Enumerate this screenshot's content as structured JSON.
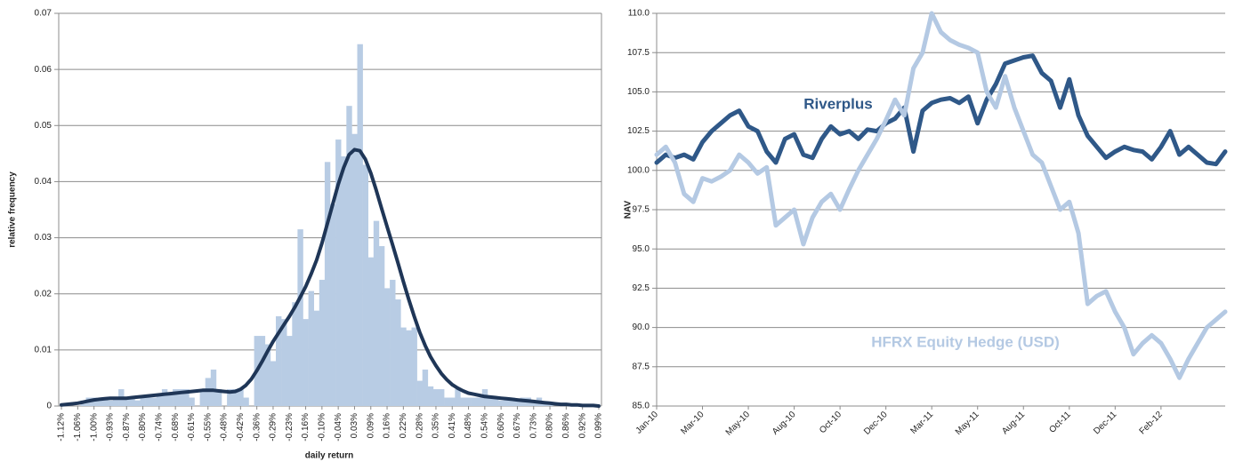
{
  "chart_data": [
    {
      "type": "bar",
      "x_label": "daily return",
      "y_label": "relative frequency",
      "categories": [
        "-1.12%",
        null,
        null,
        "-1.06%",
        null,
        null,
        "-1.00%",
        null,
        null,
        "-0.93%",
        null,
        null,
        "-0.87%",
        null,
        null,
        "-0.80%",
        null,
        null,
        "-0.74%",
        null,
        null,
        "-0.68%",
        null,
        null,
        "-0.61%",
        null,
        null,
        "-0.55%",
        null,
        null,
        "-0.48%",
        null,
        null,
        "-0.42%",
        null,
        null,
        "-0.36%",
        null,
        null,
        "-0.29%",
        null,
        null,
        "-0.23%",
        null,
        null,
        "-0.16%",
        null,
        null,
        "-0.10%",
        null,
        null,
        "-0.04%",
        null,
        null,
        "0.03%",
        null,
        null,
        "0.09%",
        null,
        null,
        "0.16%",
        null,
        null,
        "0.22%",
        null,
        null,
        "0.28%",
        null,
        null,
        "0.35%",
        null,
        null,
        "0.41%",
        null,
        null,
        "0.48%",
        null,
        null,
        "0.54%",
        null,
        null,
        "0.60%",
        null,
        null,
        "0.67%",
        null,
        null,
        "0.73%",
        null,
        null,
        "0.80%",
        null,
        null,
        "0.86%",
        null,
        null,
        "0.92%",
        null,
        null,
        "0.99%"
      ],
      "series": [
        {
          "type": "bar",
          "color": "#b8cce4",
          "values": [
            0,
            0,
            0,
            0,
            0.001,
            0.0015,
            0.0015,
            0.001,
            0.0015,
            0.001,
            0.0015,
            0.003,
            0.0015,
            0.0015,
            0.001,
            0.0015,
            0.0015,
            0.0015,
            0.002,
            0.003,
            0.002,
            0.003,
            0.003,
            0.003,
            0.0015,
            0,
            0.003,
            0.005,
            0.0065,
            0.003,
            0,
            0.003,
            0.003,
            0.003,
            0.0015,
            0,
            0.0125,
            0.0125,
            0.011,
            0.008,
            0.016,
            0.0155,
            0.0125,
            0.0185,
            0.0315,
            0.0155,
            0.0205,
            0.017,
            0.0225,
            0.0435,
            0.036,
            0.0475,
            0.0445,
            0.0535,
            0.0485,
            0.0645,
            0.043,
            0.0265,
            0.033,
            0.0285,
            0.021,
            0.0225,
            0.019,
            0.014,
            0.0135,
            0.014,
            0.0045,
            0.0065,
            0.0035,
            0.003,
            0.003,
            0.0015,
            0.0015,
            0.003,
            0.0015,
            0.0015,
            0.0015,
            0.0015,
            0.003,
            0.0015,
            0.0015,
            0.001,
            0.0015,
            0.0015,
            0.001,
            0.0015,
            0.0015,
            0.001,
            0.0015,
            0.0005,
            0.0005,
            0,
            0,
            0,
            0,
            0,
            0,
            0,
            0,
            0
          ]
        },
        {
          "type": "line",
          "color": "#1f3657",
          "values": [
            0.0002,
            0.0003,
            0.0004,
            0.0005,
            0.0007,
            0.0009,
            0.0011,
            0.0012,
            0.0013,
            0.0014,
            0.0014,
            0.0014,
            0.0014,
            0.0015,
            0.0016,
            0.0017,
            0.0018,
            0.0019,
            0.002,
            0.0021,
            0.0022,
            0.0023,
            0.0024,
            0.0025,
            0.0026,
            0.0027,
            0.0028,
            0.0028,
            0.0028,
            0.0027,
            0.0026,
            0.0025,
            0.0026,
            0.003,
            0.0037,
            0.0048,
            0.0063,
            0.008,
            0.0098,
            0.0115,
            0.013,
            0.0145,
            0.016,
            0.0176,
            0.0194,
            0.0213,
            0.0235,
            0.026,
            0.029,
            0.0325,
            0.036,
            0.0395,
            0.0425,
            0.0448,
            0.0457,
            0.0455,
            0.044,
            0.0415,
            0.0385,
            0.0352,
            0.032,
            0.0288,
            0.0255,
            0.0222,
            0.019,
            0.016,
            0.0132,
            0.0108,
            0.0088,
            0.0072,
            0.0058,
            0.0047,
            0.0038,
            0.0032,
            0.0027,
            0.0023,
            0.0021,
            0.0019,
            0.0017,
            0.0016,
            0.0015,
            0.0014,
            0.0013,
            0.0012,
            0.0011,
            0.001,
            0.0009,
            0.0008,
            0.0007,
            0.0006,
            0.0005,
            0.0004,
            0.0003,
            0.0003,
            0.0002,
            0.0002,
            0.0001,
            0.0001,
            0.0001,
            0
          ]
        }
      ],
      "ylim": [
        0,
        0.07
      ],
      "yticks": [
        0,
        0.01,
        0.02,
        0.03,
        0.04,
        0.05,
        0.06,
        0.07
      ],
      "grid": true
    },
    {
      "type": "line",
      "y_label": "NAV",
      "categories": [
        "Jan-10",
        null,
        null,
        null,
        null,
        "Mar-10",
        null,
        null,
        null,
        null,
        "May-10",
        null,
        null,
        null,
        null,
        "Aug-10",
        null,
        null,
        null,
        null,
        "Oct-10",
        null,
        null,
        null,
        null,
        "Dec-10",
        null,
        null,
        null,
        null,
        "Mar-11",
        null,
        null,
        null,
        null,
        "May-11",
        null,
        null,
        null,
        null,
        "Aug-11",
        null,
        null,
        null,
        null,
        "Oct-11",
        null,
        null,
        null,
        null,
        "Dec-11",
        null,
        null,
        null,
        null,
        "Feb-12",
        null,
        null,
        null,
        null,
        null,
        null,
        null
      ],
      "series": [
        {
          "name": "Riverplus",
          "color": "#2f5888",
          "values": [
            100.5,
            101,
            100.8,
            101,
            100.7,
            101.8,
            102.5,
            103,
            103.5,
            103.8,
            102.8,
            102.5,
            101.2,
            100.5,
            102,
            102.3,
            101,
            100.8,
            102,
            102.8,
            102.3,
            102.5,
            102,
            102.6,
            102.5,
            103,
            103.3,
            104,
            101.2,
            103.8,
            104.3,
            104.5,
            104.6,
            104.3,
            104.7,
            103,
            104.5,
            105.5,
            106.8,
            107,
            107.2,
            107.3,
            106.2,
            105.7,
            104,
            105.8,
            103.5,
            102.2,
            101.5,
            100.8,
            101.2,
            101.5,
            101.3,
            101.2,
            100.7,
            101.5,
            102.5,
            101,
            101.5,
            101,
            100.5,
            100.4,
            101.2
          ]
        },
        {
          "name": "HFRX Equity Hedge (USD)",
          "color": "#b4c9e3",
          "values": [
            101,
            101.5,
            100.5,
            98.5,
            98,
            99.5,
            99.3,
            99.6,
            100,
            101,
            100.5,
            99.8,
            100.2,
            96.5,
            97,
            97.5,
            95.3,
            97,
            98,
            98.5,
            97.5,
            98.8,
            100,
            101,
            102,
            103.2,
            104.5,
            103.5,
            106.5,
            107.5,
            110,
            108.8,
            108.3,
            108,
            107.8,
            107.5,
            105,
            104,
            106,
            104,
            102.5,
            101,
            100.5,
            99,
            97.5,
            98,
            96,
            91.5,
            92,
            92.3,
            91,
            90,
            88.3,
            89,
            89.5,
            89,
            88,
            86.8,
            88,
            89,
            90,
            90.5,
            91
          ]
        }
      ],
      "ylim": [
        85,
        110
      ],
      "yticks": [
        {
          "value": 85,
          "label": "85.0"
        },
        {
          "value": 87.5,
          "label": "87.5"
        },
        {
          "value": 90,
          "label": "90.0"
        },
        {
          "value": 92.5,
          "label": "92.5"
        },
        {
          "value": 95,
          "label": "95.0"
        },
        {
          "value": 97.5,
          "label": "97.5"
        },
        {
          "value": 100,
          "label": "100.0"
        },
        {
          "value": 102.5,
          "label": "102.5"
        },
        {
          "value": 105,
          "label": "105.0"
        },
        {
          "value": 107.5,
          "label": "107.5"
        },
        {
          "value": 110,
          "label": "110.0"
        }
      ],
      "grid": true
    }
  ]
}
